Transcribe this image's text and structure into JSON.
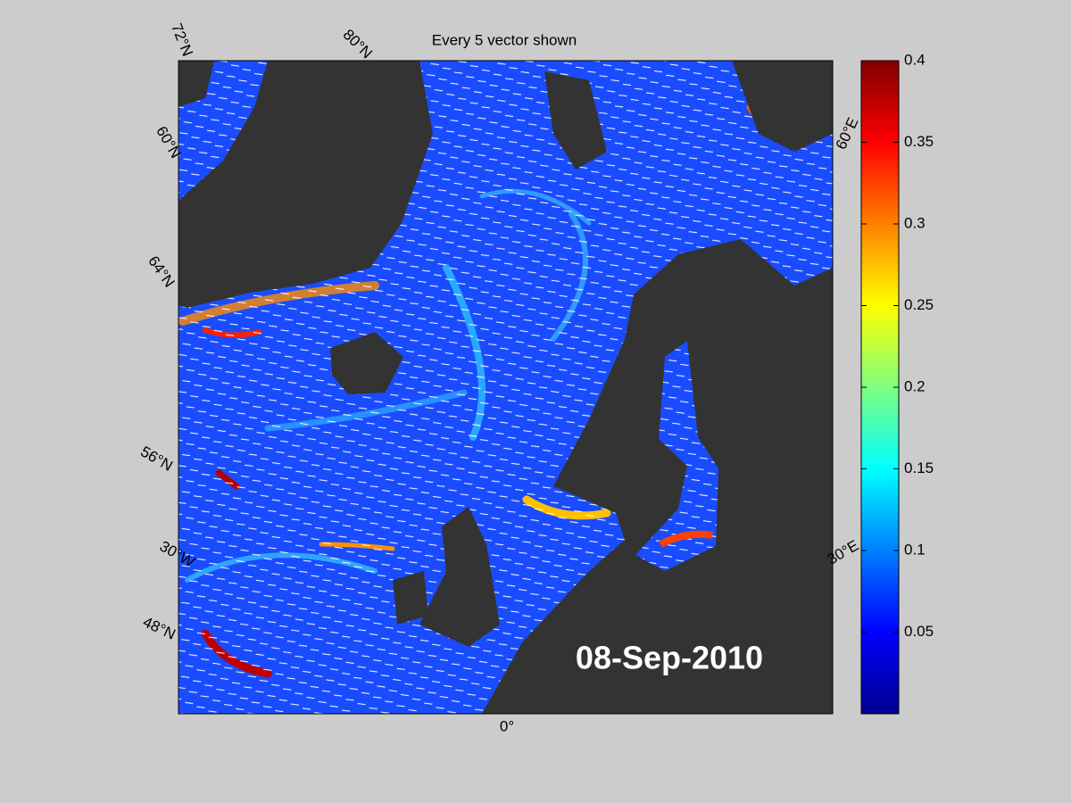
{
  "title": "Every 5 vector shown",
  "date": "08-Sep-2010",
  "graticule_labels": [
    "72°N",
    "80°N",
    "60°N",
    "64°N",
    "56°N",
    "30°W",
    "48°N",
    "0°",
    "60°E",
    "30°E"
  ],
  "colorbar": {
    "range": [
      0,
      0.4
    ],
    "ticks": [
      0.05,
      0.1,
      0.15,
      0.2,
      0.25,
      0.3,
      0.35,
      0.4
    ]
  }
}
